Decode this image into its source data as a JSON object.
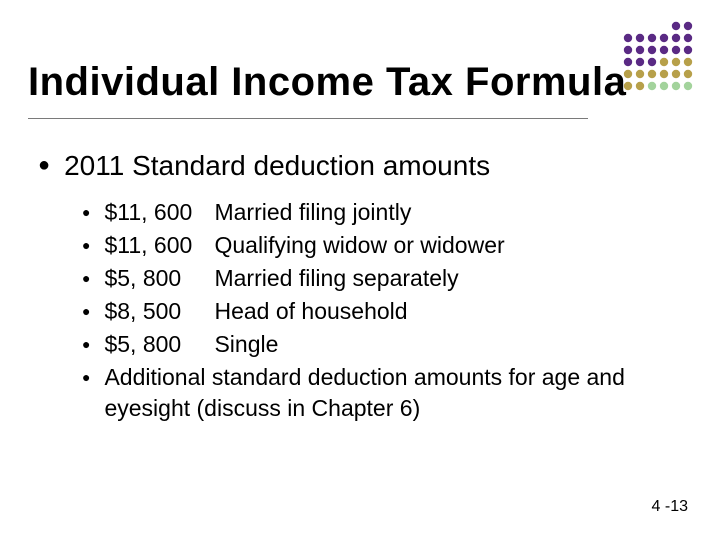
{
  "slide": {
    "title": "Individual Income Tax Formula",
    "subtitle": "2011 Standard deduction amounts",
    "items": [
      {
        "amount": "$11, 600",
        "label": "Married filing jointly"
      },
      {
        "amount": "$11, 600",
        "label": "Qualifying widow or widower"
      },
      {
        "amount": "$5, 800",
        "label": "Married filing separately"
      },
      {
        "amount": "$8, 500",
        "label": "Head of household"
      },
      {
        "amount": "$5, 800",
        "label": "Single"
      }
    ],
    "extra": "Additional standard deduction amounts for age and eyesight (discuss in Chapter 6)",
    "footer": "4 -13"
  },
  "style": {
    "fontsize_title": 40,
    "fontsize_lvl1": 28,
    "fontsize_lvl2": 23,
    "fontsize_footer": 16,
    "color_text": "#000000",
    "color_rule": "#7a7a7a",
    "bullet_char": "●"
  },
  "dotgrid": {
    "cols": 6,
    "rows": 6,
    "r": 4.2,
    "spacing": 12,
    "empty_count": 4,
    "colors": [
      "#5a2a84",
      "#5a2a84",
      "#5a2a84",
      "#5a2a84",
      "#5a2a84",
      "#5a2a84",
      "#5a2a84",
      "#5a2a84",
      "#5a2a84",
      "#5a2a84",
      "#5a2a84",
      "#5a2a84",
      "#5a2a84",
      "#5a2a84",
      "#5a2a84",
      "#5a2a84",
      "#5a2a84",
      "#b7a04a",
      "#b7a04a",
      "#b7a04a",
      "#b7a04a",
      "#b7a04a",
      "#b7a04a",
      "#b7a04a",
      "#b7a04a",
      "#b7a04a",
      "#b7a04a",
      "#b7a04a",
      "#a3d39c",
      "#a3d39c",
      "#a3d39c",
      "#a3d39c"
    ]
  }
}
